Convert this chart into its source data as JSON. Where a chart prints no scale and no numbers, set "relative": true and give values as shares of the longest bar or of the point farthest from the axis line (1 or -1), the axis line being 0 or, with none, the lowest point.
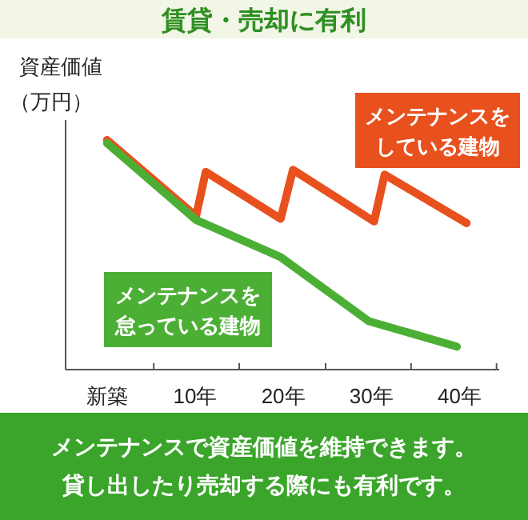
{
  "chart_data": {
    "type": "line",
    "title": "賃貸・売却に有利",
    "ylabel": "資産価値（万円）",
    "relative": true,
    "xlim": [
      -4.7,
      44.5
    ],
    "xticks": [
      {
        "value": 0,
        "label": "新築"
      },
      {
        "value": 10,
        "label": "10年"
      },
      {
        "value": 20,
        "label": "20年"
      },
      {
        "value": 30,
        "label": "30年"
      },
      {
        "value": 40,
        "label": "40年"
      },
      {
        "value": 5.3,
        "label": null
      },
      {
        "value": 15,
        "label": null
      },
      {
        "value": 24.8,
        "label": null
      },
      {
        "value": 34.5,
        "label": null
      },
      {
        "value": 44.2,
        "label": null
      }
    ],
    "series": [
      {
        "name": "メンテナンスをしている建物",
        "color": "#e8501e",
        "x": [
          0,
          10.1,
          11.2,
          19.7,
          21.1,
          30.3,
          31.5,
          40.8
        ],
        "values": [
          1.0,
          0.668,
          0.861,
          0.657,
          0.87,
          0.645,
          0.849,
          0.638
        ]
      },
      {
        "name": "メンテナンスを怠っている建物",
        "color": "#4caf35",
        "x": [
          0,
          10.1,
          19.7,
          29.7,
          39.7
        ],
        "values": [
          0.986,
          0.652,
          0.49,
          0.211,
          0.1
        ]
      }
    ],
    "annotations": [
      "メンテナンスで資産価値を維持できます。貸し出したり売却する際にも有利です。"
    ],
    "legend": false,
    "grid": false,
    "marker": "none",
    "line_style": "solid"
  }
}
